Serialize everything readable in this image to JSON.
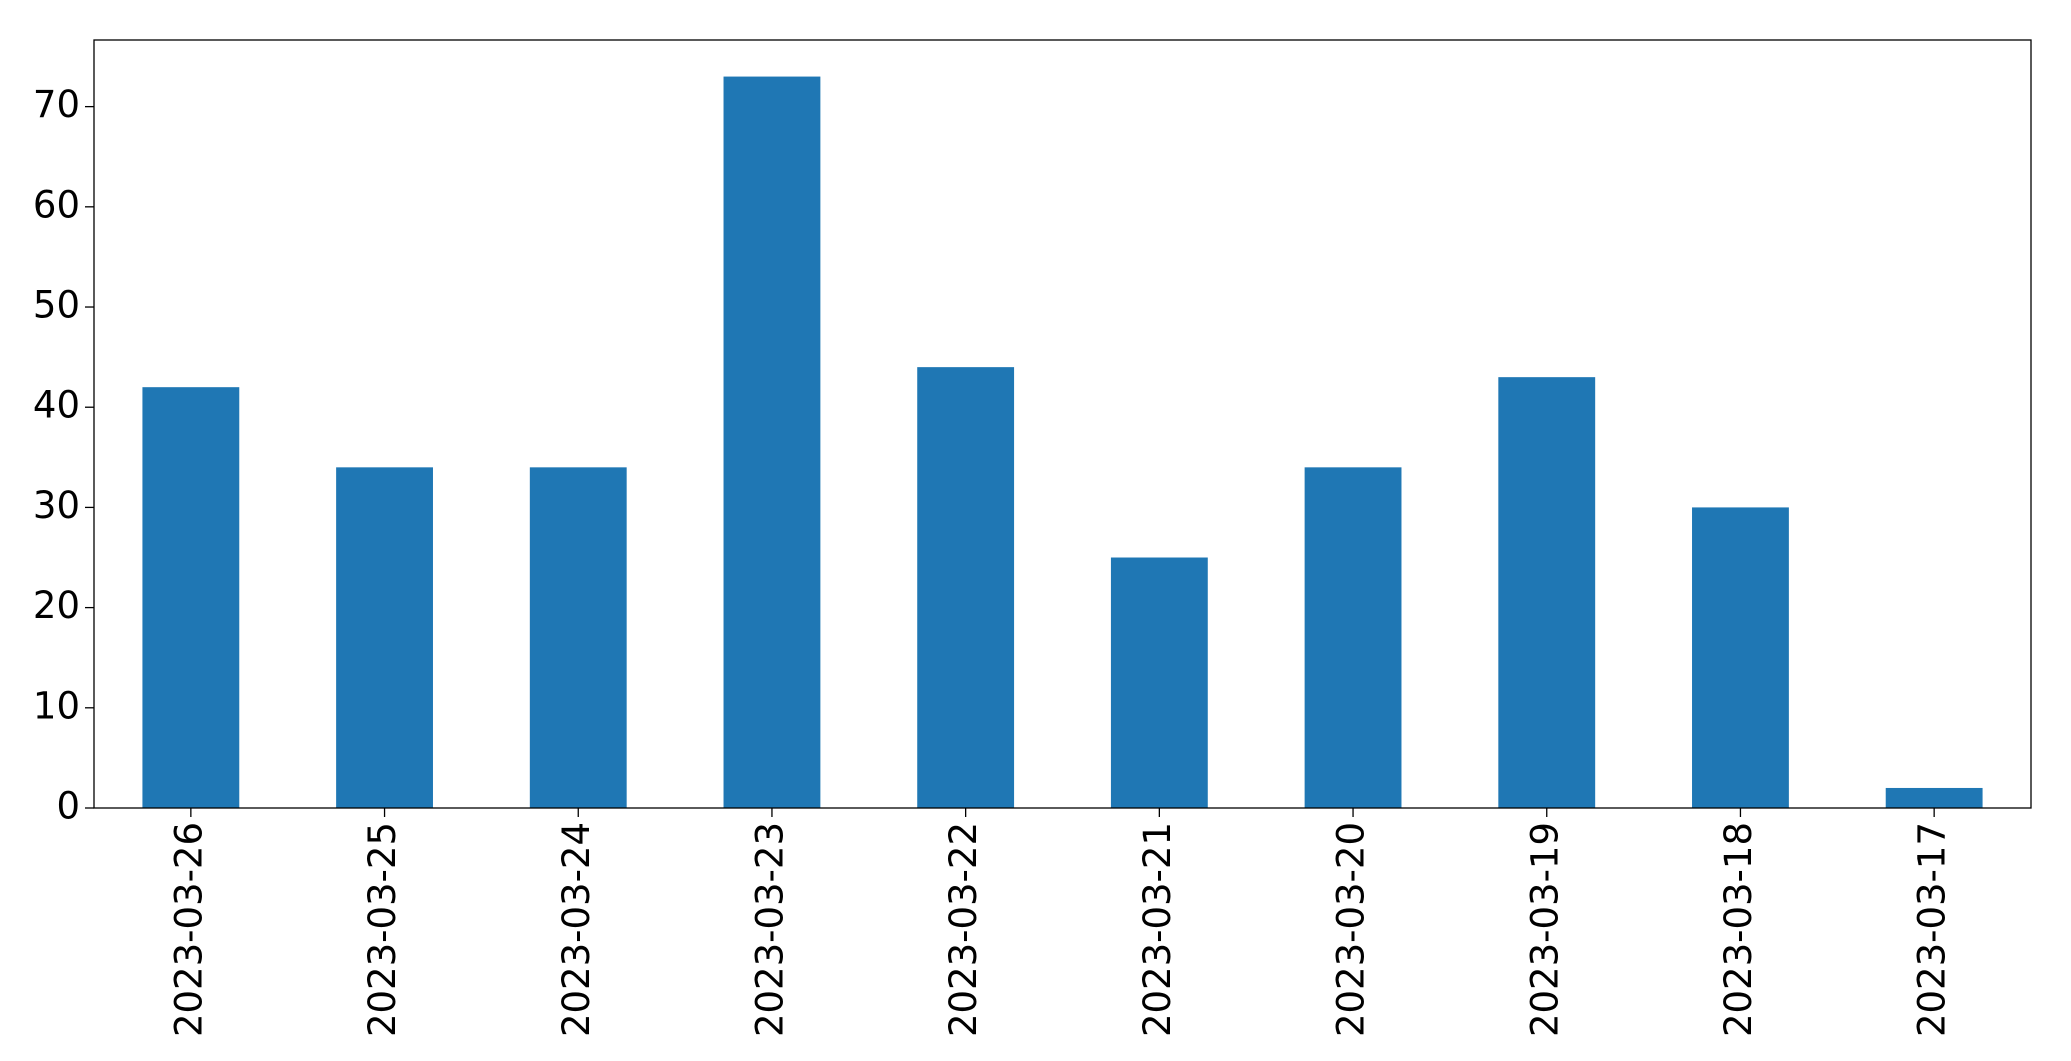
{
  "chart_data": {
    "type": "bar",
    "categories": [
      "2023-03-26",
      "2023-03-25",
      "2023-03-24",
      "2023-03-23",
      "2023-03-22",
      "2023-03-21",
      "2023-03-20",
      "2023-03-19",
      "2023-03-18",
      "2023-03-17"
    ],
    "values": [
      42,
      34,
      34,
      73,
      44,
      25,
      34,
      43,
      30,
      2
    ],
    "color": "#1f77b4",
    "ylim": [
      0,
      76.65
    ],
    "yticks": [
      0,
      10,
      20,
      30,
      40,
      50,
      60,
      70
    ],
    "grid": false
  }
}
